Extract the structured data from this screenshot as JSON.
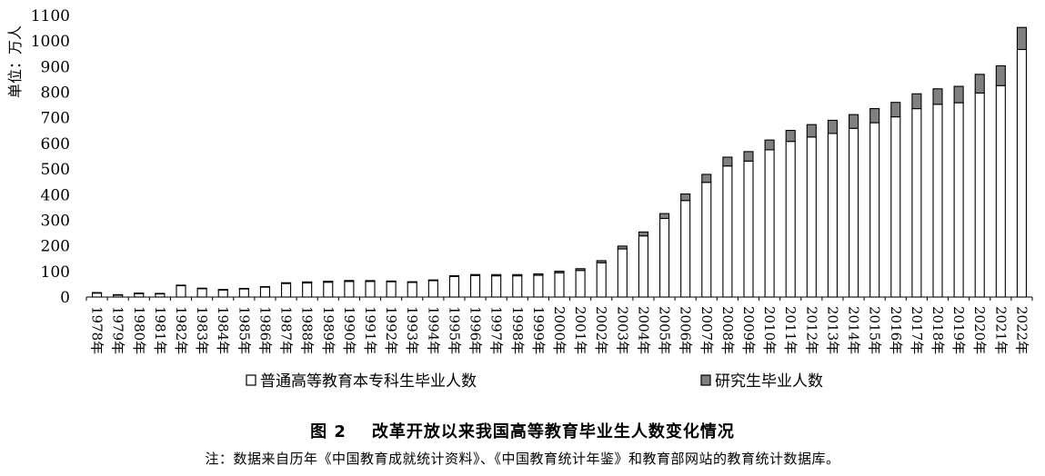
{
  "chart_data": {
    "type": "bar",
    "stacked": true,
    "ylabel": "单位：万人",
    "ylim": [
      0,
      1100
    ],
    "yticks": [
      0,
      100,
      200,
      300,
      400,
      500,
      600,
      700,
      800,
      900,
      1000,
      1100
    ],
    "categories": [
      "1978年",
      "1979年",
      "1980年",
      "1981年",
      "1982年",
      "1983年",
      "1984年",
      "1985年",
      "1986年",
      "1987年",
      "1988年",
      "1989年",
      "1990年",
      "1991年",
      "1992年",
      "1993年",
      "1994年",
      "1995年",
      "1996年",
      "1997年",
      "1998年",
      "1999年",
      "2000年",
      "2001年",
      "2002年",
      "2003年",
      "2004年",
      "2005年",
      "2006年",
      "2007年",
      "2008年",
      "2009年",
      "2010年",
      "2011年",
      "2012年",
      "2013年",
      "2014年",
      "2015年",
      "2016年",
      "2017年",
      "2018年",
      "2019年",
      "2020年",
      "2021年",
      "2022年"
    ],
    "series": [
      {
        "name": "普通高等教育本专科生毕业人数",
        "color": "#ffffff",
        "values": [
          17,
          9,
          15,
          14,
          46,
          34,
          29,
          32,
          39,
          53,
          55,
          58,
          61,
          61,
          60,
          57,
          64,
          80,
          84,
          83,
          83,
          85,
          95,
          104,
          134,
          188,
          239,
          307,
          377,
          448,
          512,
          531,
          575,
          608,
          625,
          639,
          659,
          681,
          704,
          736,
          753,
          759,
          797,
          826,
          967
        ]
      },
      {
        "name": "研究生毕业人数",
        "color": "#808080",
        "values": [
          0.1,
          0.1,
          0.1,
          0.2,
          0.4,
          0.5,
          0.3,
          1.7,
          1.7,
          2.8,
          4.1,
          3.7,
          3.5,
          3.2,
          2.6,
          2.8,
          2.8,
          3.2,
          3.9,
          4.7,
          4.7,
          5.5,
          5.9,
          6.8,
          8.1,
          11.1,
          15.1,
          19.0,
          25.6,
          31.2,
          34.5,
          37.1,
          38.4,
          43.0,
          48.6,
          51.4,
          53.6,
          55.2,
          56.4,
          57.8,
          60.4,
          64.0,
          72.9,
          77.3,
          86.2
        ]
      }
    ]
  },
  "figure": {
    "title_num": "图 2",
    "title_text": "改革开放以来我国高等教育毕业生人数变化情况",
    "note": "注：数据来自历年《中国教育成就统计资料》、《中国教育统计年鉴》和教育部网站的教育统计数据库。"
  }
}
